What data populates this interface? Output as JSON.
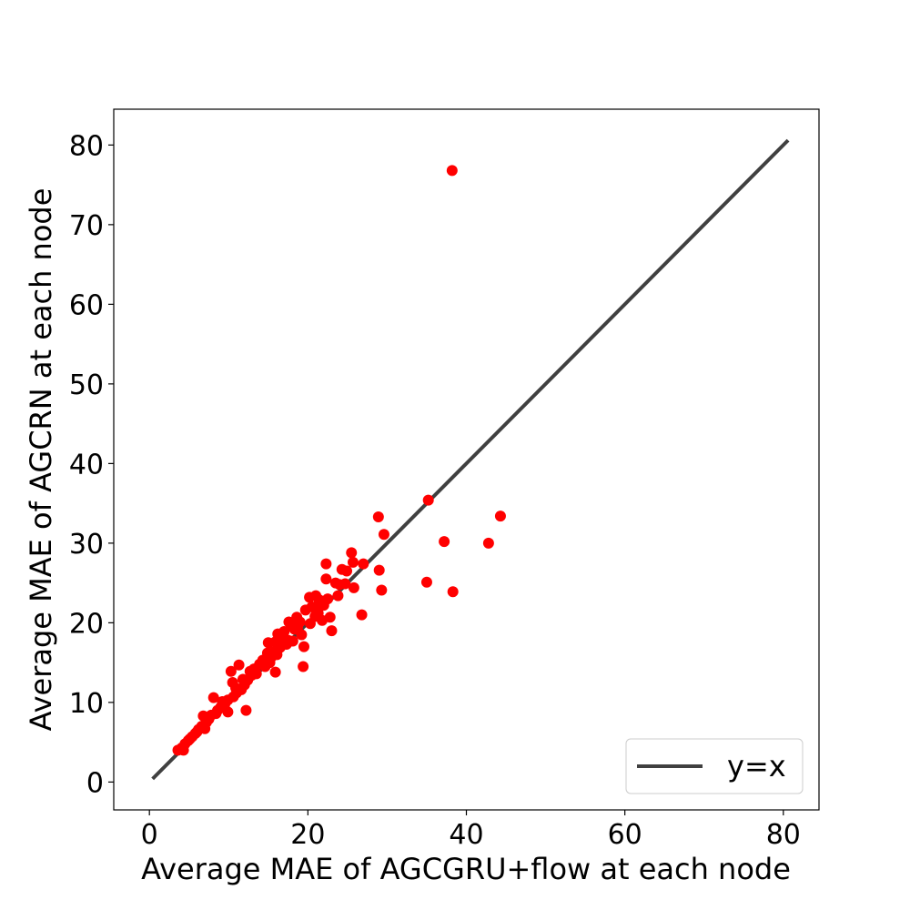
{
  "chart_data": {
    "type": "scatter",
    "title": "",
    "xlabel": "Average MAE of AGCGRU+flow at each node",
    "ylabel": "Average MAE of AGCRN at each node",
    "xlim": [
      -4.5,
      84.5
    ],
    "ylim": [
      -3.5,
      84.5
    ],
    "xticks": [
      0,
      20,
      40,
      60,
      80
    ],
    "yticks": [
      0,
      10,
      20,
      30,
      40,
      50,
      60,
      70,
      80
    ],
    "grid": false,
    "legend": {
      "placement": "bottom-right",
      "entries": [
        "y=x"
      ]
    },
    "reference_line": {
      "name": "y=x",
      "x": [
        0.4,
        80.6
      ],
      "y": [
        0.4,
        80.6
      ],
      "color": "#404040"
    },
    "series": [
      {
        "color": "#ff0000",
        "points": [
          [
            38.2,
            76.8
          ],
          [
            35.2,
            35.4
          ],
          [
            44.3,
            33.4
          ],
          [
            28.9,
            33.3
          ],
          [
            29.6,
            31.1
          ],
          [
            37.2,
            30.2
          ],
          [
            42.8,
            30.0
          ],
          [
            25.5,
            28.8
          ],
          [
            25.7,
            27.6
          ],
          [
            27.0,
            27.4
          ],
          [
            22.3,
            27.4
          ],
          [
            29.0,
            26.6
          ],
          [
            24.3,
            26.7
          ],
          [
            24.9,
            26.5
          ],
          [
            35.0,
            25.1
          ],
          [
            22.3,
            25.5
          ],
          [
            23.5,
            25.0
          ],
          [
            24.0,
            24.8
          ],
          [
            25.8,
            24.4
          ],
          [
            29.3,
            24.1
          ],
          [
            38.3,
            23.9
          ],
          [
            21.0,
            23.4
          ],
          [
            20.2,
            23.2
          ],
          [
            22.5,
            23.0
          ],
          [
            26.8,
            21.0
          ],
          [
            22.8,
            20.7
          ],
          [
            23.0,
            19.0
          ],
          [
            19.5,
            17.0
          ],
          [
            19.4,
            14.5
          ],
          [
            15.9,
            13.8
          ],
          [
            12.2,
            9.0
          ],
          [
            20.5,
            22.0
          ],
          [
            19.7,
            21.6
          ],
          [
            21.3,
            21.2
          ],
          [
            20.9,
            20.8
          ],
          [
            18.6,
            20.7
          ],
          [
            19.0,
            20.1
          ],
          [
            17.6,
            20.1
          ],
          [
            17.9,
            19.6
          ],
          [
            18.3,
            19.2
          ],
          [
            17.0,
            18.9
          ],
          [
            16.2,
            18.6
          ],
          [
            16.8,
            18.1
          ],
          [
            15.9,
            17.6
          ],
          [
            17.3,
            17.3
          ],
          [
            15.0,
            17.5
          ],
          [
            16.5,
            16.9
          ],
          [
            15.7,
            16.4
          ],
          [
            14.9,
            16.2
          ],
          [
            15.4,
            15.7
          ],
          [
            14.3,
            15.3
          ],
          [
            13.9,
            14.8
          ],
          [
            14.6,
            14.5
          ],
          [
            13.2,
            14.2
          ],
          [
            12.7,
            13.9
          ],
          [
            11.3,
            14.7
          ],
          [
            10.3,
            13.9
          ],
          [
            12.9,
            13.4
          ],
          [
            11.8,
            12.9
          ],
          [
            10.5,
            12.5
          ],
          [
            12.0,
            12.2
          ],
          [
            11.6,
            11.6
          ],
          [
            11.0,
            11.2
          ],
          [
            10.6,
            10.7
          ],
          [
            8.1,
            10.6
          ],
          [
            9.9,
            10.3
          ],
          [
            9.5,
            9.7
          ],
          [
            9.0,
            9.4
          ],
          [
            8.6,
            9.0
          ],
          [
            9.9,
            8.8
          ],
          [
            7.8,
            8.4
          ],
          [
            6.8,
            8.3
          ],
          [
            7.5,
            7.9
          ],
          [
            7.2,
            7.5
          ],
          [
            6.6,
            7.0
          ],
          [
            7.0,
            6.7
          ],
          [
            6.2,
            6.6
          ],
          [
            5.8,
            6.1
          ],
          [
            5.4,
            5.7
          ],
          [
            4.9,
            5.2
          ],
          [
            4.5,
            4.8
          ],
          [
            4.1,
            4.3
          ],
          [
            3.6,
            4.0
          ],
          [
            4.3,
            4.0
          ],
          [
            21.4,
            22.9
          ],
          [
            22.0,
            22.2
          ],
          [
            23.8,
            23.4
          ],
          [
            24.7,
            24.9
          ],
          [
            20.8,
            21.9
          ],
          [
            19.2,
            18.5
          ],
          [
            18.1,
            17.7
          ],
          [
            21.8,
            20.3
          ],
          [
            20.3,
            19.9
          ],
          [
            17.5,
            17.8
          ],
          [
            18.7,
            19.5
          ],
          [
            16.1,
            16.0
          ],
          [
            15.2,
            15.0
          ],
          [
            13.5,
            13.6
          ],
          [
            12.4,
            12.8
          ],
          [
            10.9,
            11.8
          ],
          [
            9.2,
            10.1
          ],
          [
            8.4,
            8.6
          ],
          [
            6.0,
            6.3
          ],
          [
            5.1,
            5.4
          ]
        ]
      }
    ]
  }
}
